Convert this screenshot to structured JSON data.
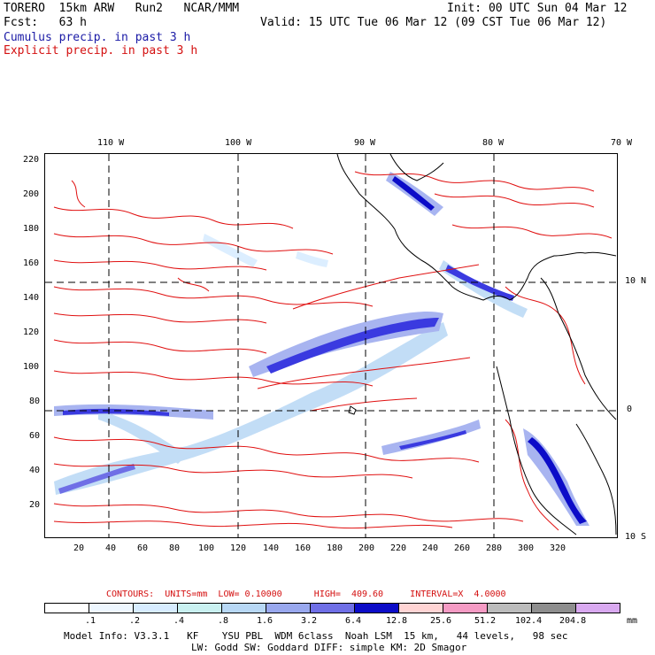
{
  "header": {
    "model": "TORERO  15km ARW   Run2   NCAR/MMM",
    "fcst": "Fcst:   63 h",
    "init": "Init: 00 UTC Sun 04 Mar 12",
    "valid": "Valid: 15 UTC Tue 06 Mar 12 (09 CST Tue 06 Mar 12)",
    "line_cumulus": "Cumulus precip. in past 3 h",
    "line_explicit": "Explicit precip. in past 3 h"
  },
  "axes": {
    "top_lon_labels": [
      "110 W",
      "100 W",
      "90 W",
      "80 W",
      "70 W"
    ],
    "right_lat_labels": [
      "10 N",
      "0",
      "10 S"
    ],
    "left_y_labels": [
      "220",
      "200",
      "180",
      "160",
      "140",
      "120",
      "100",
      "80",
      "60",
      "40",
      "20"
    ],
    "bottom_x_labels": [
      "20",
      "40",
      "60",
      "80",
      "100",
      "120",
      "140",
      "160",
      "180",
      "200",
      "220",
      "240",
      "260",
      "280",
      "300",
      "320"
    ]
  },
  "contour_info": {
    "label": "CONTOURS:  UNITS=mm  LOW= 0.10000      HIGH=  409.60     INTERVAL=X  4.0000"
  },
  "colorbar": {
    "labels": [
      ".1",
      ".2",
      ".4",
      ".8",
      "1.6",
      "3.2",
      "6.4",
      "12.8",
      "25.6",
      "51.2",
      "102.4",
      "204.8"
    ],
    "units": "mm",
    "colors": [
      "#ffffff",
      "#eef7ff",
      "#d7ecff",
      "#b8d8f5",
      "#99a8ee",
      "#6f6fe6",
      "#3a3ae0",
      "#0c0cc8",
      "#ffd4d4",
      "#f59bc4",
      "#bcbcbc",
      "#8e8e8e",
      "#d9a9f0"
    ]
  },
  "footer": {
    "line1": "Model Info: V3.3.1   KF    YSU PBL  WDM 6class  Noah LSM  15 km,   44 levels,   98 sec",
    "line2": "LW: Godd SW: Goddard DIFF: simple KM: 2D Smagor"
  }
}
